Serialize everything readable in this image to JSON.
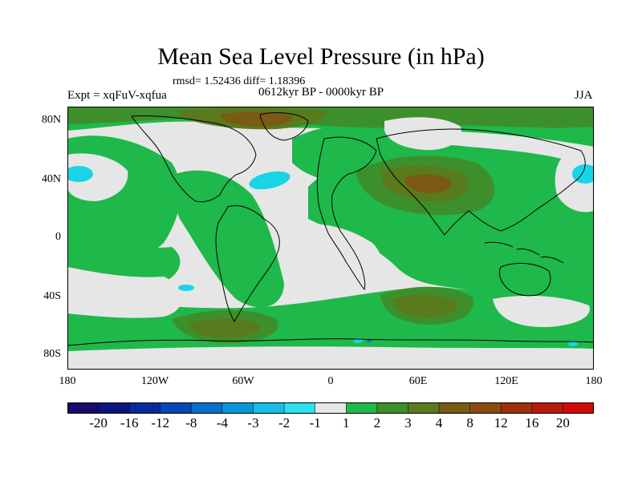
{
  "title": "Mean Sea Level Pressure (in hPa)",
  "stats": "rmsd= 1.52436 diff= 1.18396",
  "period": "0612kyr BP - 0000kyr BP",
  "expt": "Expt = xqFuV-xqfua",
  "season": "JJA",
  "y_axis_labels": [
    "80N",
    "40N",
    "0",
    "40S",
    "80S"
  ],
  "x_axis_labels": [
    "180",
    "120W",
    "60W",
    "0",
    "60E",
    "120E",
    "180"
  ],
  "colorbar": {
    "labels": [
      "-20",
      "-16",
      "-12",
      "-8",
      "-4",
      "-3",
      "-2",
      "-1",
      "1",
      "2",
      "3",
      "4",
      "8",
      "12",
      "16",
      "20"
    ],
    "colors": [
      "#1a0a6b",
      "#0b1480",
      "#0a2aa0",
      "#0646b8",
      "#0a6ed0",
      "#0a96dc",
      "#18bce6",
      "#2ee0f0",
      "#e6e6e6",
      "#1fb84a",
      "#3d8f2c",
      "#5a7a1e",
      "#7a5a14",
      "#8c4a10",
      "#a0300c",
      "#b81a08",
      "#d20a04"
    ]
  },
  "palette": {
    "ocean_neutral": "#e6e6e6",
    "green_1_2": "#1fb84a",
    "green_2_3": "#3d8f2c",
    "olive_3_4": "#5a7a1e",
    "brown_4_8": "#7a5a14",
    "cyan_neg": "#18d4e6"
  }
}
